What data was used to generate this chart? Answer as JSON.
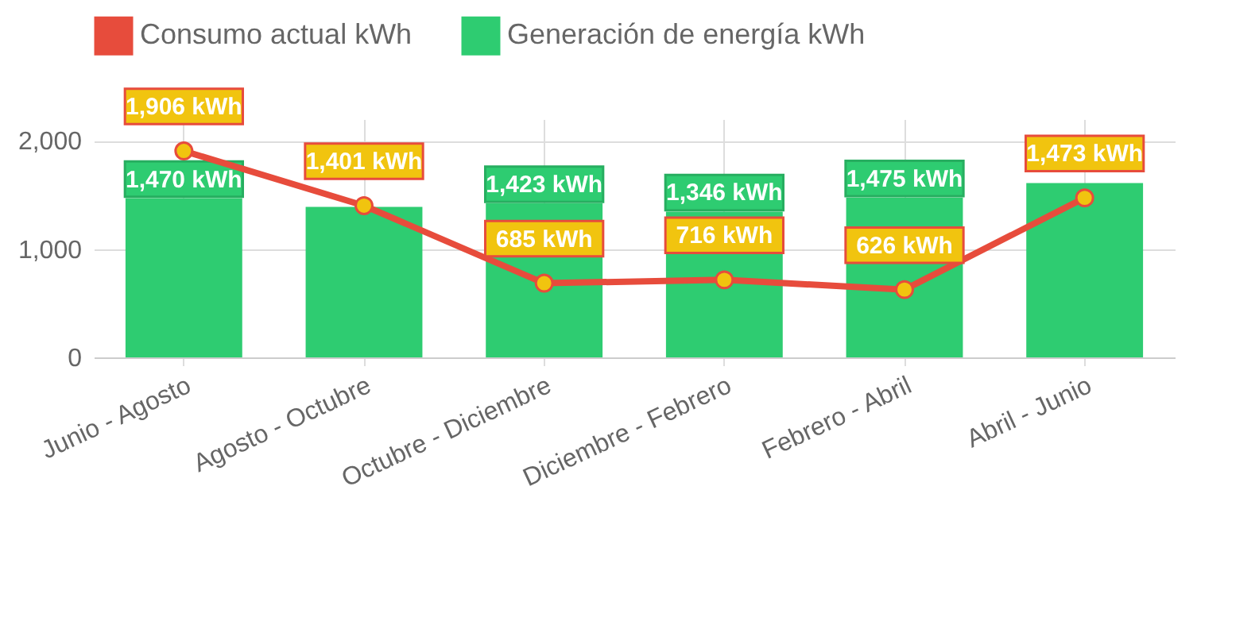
{
  "chart_data": {
    "type": "bar",
    "categories": [
      "Junio - Agosto",
      "Agosto - Octubre",
      "Octubre - Diciembre",
      "Diciembre - Febrero",
      "Febrero - Abril",
      "Abril - Junio"
    ],
    "series": [
      {
        "name": "Consumo actual kWh",
        "type": "line",
        "color": "#e74c3c",
        "values": [
          1906,
          1401,
          685,
          716,
          626,
          1473
        ],
        "value_labels": [
          "1,906 kWh",
          "1,401 kWh",
          "685 kWh",
          "716 kWh",
          "626 kWh",
          "1,473 kWh"
        ]
      },
      {
        "name": "Generación de energía kWh",
        "color": "#2ecc71",
        "values": [
          1470,
          1390,
          1423,
          1346,
          1475,
          1610
        ],
        "value_labels": [
          "1,470 kWh",
          null,
          "1,423 kWh",
          "1,346 kWh",
          "1,475 kWh",
          null
        ]
      }
    ],
    "ylim": [
      0,
      2200
    ],
    "yticks": [
      0,
      {
        "value": 1000,
        "label": "1,000"
      },
      {
        "value": 2000,
        "label": "2,000"
      }
    ],
    "grid": true,
    "legend": "top",
    "marker": "circle"
  }
}
